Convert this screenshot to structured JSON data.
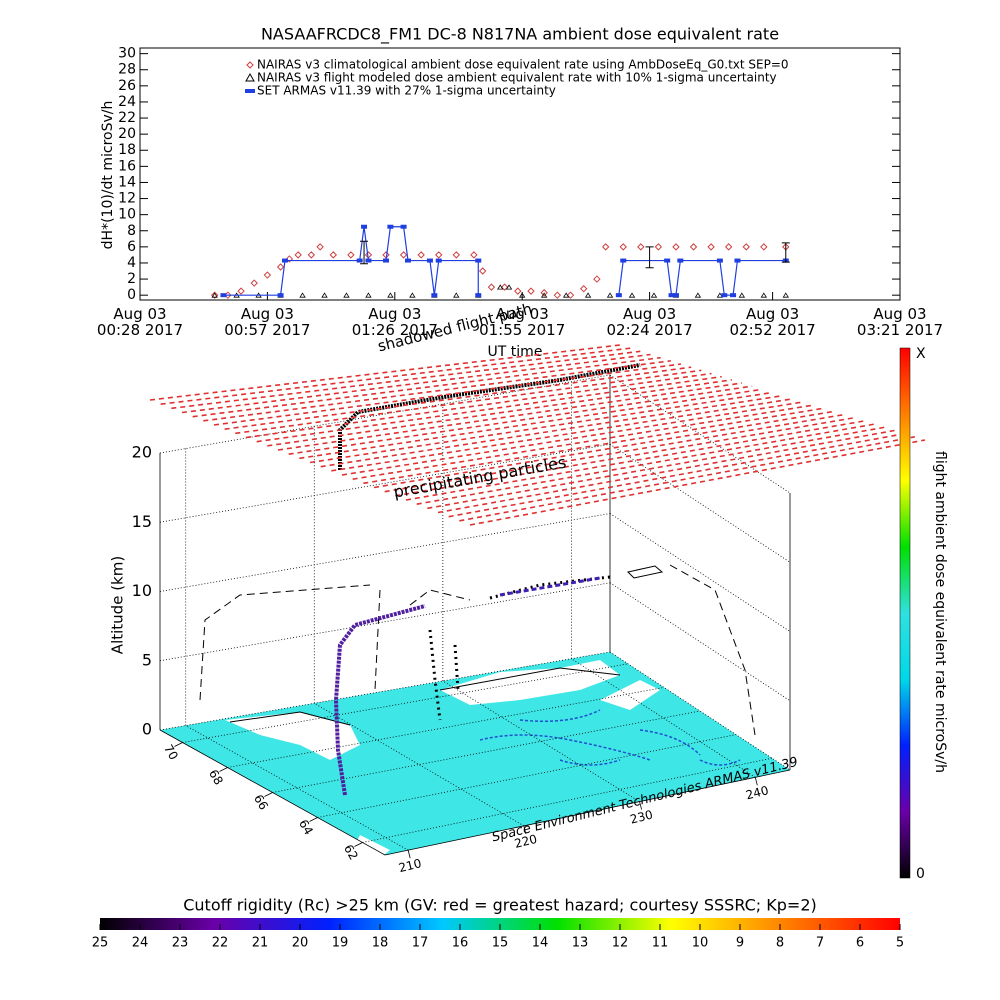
{
  "chart_data": [
    {
      "type": "line",
      "title": "NASAAFRCDC8_FM1 DC-8    N817NA ambient dose equivalent rate",
      "ylabel": "dH*(10)/dt microSv/h",
      "xlabel": "UT time",
      "xlim": [
        "00:28",
        "03:21"
      ],
      "xticks": [
        {
          "value": "00:28",
          "label": "Aug 03\n00:28 2017"
        },
        {
          "value": "00:57",
          "label": "Aug 03\n00:57 2017"
        },
        {
          "value": "01:26",
          "label": "Aug 03\n01:26 2017"
        },
        {
          "value": "01:55",
          "label": "Aug 03\n01:55 2017"
        },
        {
          "value": "02:24",
          "label": "Aug 03\n02:24 2017"
        },
        {
          "value": "02:52",
          "label": "Aug 03\n02:52 2017"
        },
        {
          "value": "03:21",
          "label": "Aug 03\n03:21 2017"
        }
      ],
      "ylim": [
        -0.6,
        30.7
      ],
      "yticks": [
        0,
        2,
        4,
        6,
        8,
        10,
        12,
        14,
        16,
        18,
        20,
        22,
        24,
        26,
        28,
        30
      ],
      "series": [
        {
          "name": "NAIRAS v3 climatological ambient dose equivalent rate using AmbDoseEq_G0.txt SEP=0",
          "color": "#d04040",
          "marker": "diamond",
          "line": false,
          "x": [
            "00:45",
            "00:48",
            "00:51",
            "00:54",
            "00:57",
            "01:00",
            "01:02",
            "01:04",
            "01:07",
            "01:09",
            "01:12",
            "01:16",
            "01:20",
            "01:24",
            "01:28",
            "01:32",
            "01:36",
            "01:40",
            "01:44",
            "01:46",
            "01:48",
            "01:51",
            "01:54",
            "01:57",
            "02:00",
            "02:03",
            "02:06",
            "02:09",
            "02:12",
            "02:14",
            "02:18",
            "02:22",
            "02:26",
            "02:30",
            "02:34",
            "02:38",
            "02:42",
            "02:46",
            "02:50",
            "02:55"
          ],
          "values": [
            0,
            0,
            0.5,
            1.5,
            2.5,
            3.5,
            4.5,
            5,
            5,
            6,
            5,
            5,
            5,
            5,
            5,
            5,
            5,
            5,
            5,
            3,
            1,
            1,
            0.5,
            0.5,
            0.3,
            0,
            0,
            0.8,
            2,
            6,
            6,
            6,
            6,
            6,
            6,
            6,
            6,
            6,
            6,
            6
          ]
        },
        {
          "name": "NAIRAS v3 flight modeled dose ambient equivalent rate with 10% 1-sigma uncertainty",
          "color": "#000000",
          "marker": "triangle",
          "line": false,
          "x": [
            "00:45",
            "00:50",
            "00:55",
            "01:00",
            "01:05",
            "01:10",
            "01:15",
            "01:20",
            "01:25",
            "01:30",
            "01:35",
            "01:40",
            "01:45",
            "01:50",
            "01:52",
            "01:55",
            "02:00",
            "02:05",
            "02:10",
            "02:15",
            "02:20",
            "02:25",
            "02:30",
            "02:35",
            "02:40",
            "02:45",
            "02:50",
            "02:55"
          ],
          "values": [
            0,
            0,
            0,
            0,
            0,
            0,
            0,
            0,
            0,
            0,
            0,
            0,
            0,
            1,
            1,
            0,
            0,
            0,
            0,
            0,
            0,
            0,
            0,
            0,
            0,
            0,
            0,
            0
          ]
        },
        {
          "name": "SET ARMAS v11.39 with 27% 1-sigma uncertainty",
          "color": "#1f3fe0",
          "marker": "square",
          "line": true,
          "x": [
            "00:47",
            "01:00",
            "01:01",
            "01:18",
            "01:19",
            "01:20",
            "01:24",
            "01:25",
            "01:28",
            "01:29",
            "01:34",
            "01:35",
            "01:36",
            "01:45",
            "01:45",
            null,
            "02:17",
            "02:18",
            "02:28",
            "02:29",
            "02:30",
            "02:31",
            "02:40",
            "02:41",
            "02:43",
            "02:44",
            "02:55"
          ],
          "values": [
            0,
            0,
            4.3,
            4.3,
            8.5,
            4.3,
            4.3,
            8.5,
            8.5,
            4.3,
            4.3,
            0,
            4.3,
            4.3,
            0,
            null,
            0,
            4.3,
            4.3,
            0,
            0,
            4.3,
            4.3,
            0,
            0,
            4.3,
            4.3
          ]
        }
      ],
      "error_bars": {
        "color": "#000000",
        "x": [
          "01:19",
          "02:24",
          "02:55"
        ],
        "values": [
          5.3,
          4.7,
          5.3
        ],
        "errors": [
          1.4,
          1.3,
          1.2
        ]
      },
      "annotations": [
        "shadowed flight path"
      ]
    },
    {
      "type": "scene3d",
      "zlabel": "Altitude (km)",
      "zlim": [
        0,
        20
      ],
      "zticks": [
        0,
        5,
        10,
        15,
        20
      ],
      "latlim": [
        61,
        71
      ],
      "latticks": [
        70,
        68,
        66,
        64,
        62
      ],
      "lonlim": [
        208,
        243
      ],
      "lonticks": [
        210,
        220,
        230,
        240
      ],
      "annotations": [
        "precipitating particles"
      ],
      "credit": "Space Environment Technologies ARMAS v11.39",
      "grid": true
    },
    {
      "type": "colorbar",
      "label": "flight ambient dose equivalent rate microSv/h",
      "min_label": "0",
      "max_label": "X",
      "colors": [
        "#000000",
        "#6a00a8",
        "#0020ff",
        "#00d8e8",
        "#30e0e0",
        "#00e000",
        "#ffff00",
        "#ff8000",
        "#ff0000"
      ]
    },
    {
      "type": "colorbar",
      "title": "Cutoff rigidity (Rc) >25 km (GV: red = greatest hazard; courtesy SSSRC; Kp=2)",
      "lim": [
        25,
        5
      ],
      "ticks": [
        25,
        24,
        23,
        22,
        21,
        20,
        19,
        18,
        17,
        16,
        15,
        14,
        13,
        12,
        11,
        10,
        9,
        8,
        7,
        6,
        5
      ],
      "colors": [
        "#000000",
        "#6a00a8",
        "#0020ff",
        "#00c8ff",
        "#00e000",
        "#ffff00",
        "#ff8000",
        "#ff0000"
      ]
    }
  ]
}
